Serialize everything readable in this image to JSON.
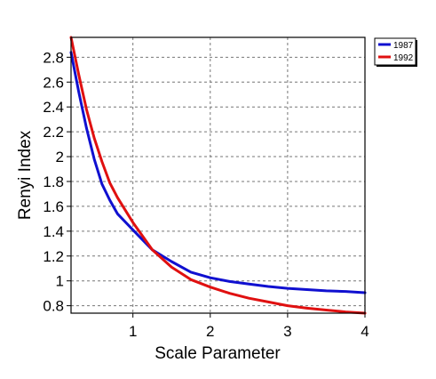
{
  "chart_data": {
    "type": "line",
    "title": "",
    "xlabel": "Scale Parameter",
    "ylabel": "Renyi Index",
    "xlim": [
      0.2,
      4
    ],
    "ylim": [
      0.74,
      2.96
    ],
    "xticks": [
      1,
      2,
      3,
      4
    ],
    "xtick_labels": [
      "1",
      "2",
      "3",
      "4"
    ],
    "yticks": [
      0.8,
      1,
      1.2,
      1.4,
      1.6,
      1.8,
      2,
      2.2,
      2.4,
      2.6,
      2.8
    ],
    "ytick_labels": [
      "0.8",
      "1",
      "1.2",
      "1.4",
      "1.6",
      "1.8",
      "2",
      "2.2",
      "2.4",
      "2.6",
      "2.8"
    ],
    "grid": true,
    "legend_position": "outside-top-right",
    "series": [
      {
        "name": "1987",
        "color": "#1010d0",
        "x": [
          0.2,
          0.3,
          0.4,
          0.5,
          0.6,
          0.7,
          0.8,
          1.0,
          1.25,
          1.5,
          1.75,
          2.0,
          2.25,
          2.5,
          2.75,
          3.0,
          3.25,
          3.5,
          3.75,
          4.0
        ],
        "y": [
          2.84,
          2.52,
          2.23,
          1.98,
          1.78,
          1.65,
          1.54,
          1.41,
          1.25,
          1.155,
          1.07,
          1.025,
          0.995,
          0.975,
          0.955,
          0.94,
          0.93,
          0.92,
          0.915,
          0.905
        ]
      },
      {
        "name": "1992",
        "color": "#e01010",
        "x": [
          0.2,
          0.3,
          0.4,
          0.5,
          0.6,
          0.7,
          0.8,
          1.0,
          1.25,
          1.5,
          1.75,
          2.0,
          2.25,
          2.5,
          2.75,
          3.0,
          3.25,
          3.5,
          3.75,
          4.0
        ],
        "y": [
          2.96,
          2.66,
          2.38,
          2.15,
          1.96,
          1.79,
          1.67,
          1.47,
          1.25,
          1.11,
          1.01,
          0.95,
          0.9,
          0.86,
          0.83,
          0.8,
          0.78,
          0.765,
          0.75,
          0.74
        ]
      }
    ]
  }
}
